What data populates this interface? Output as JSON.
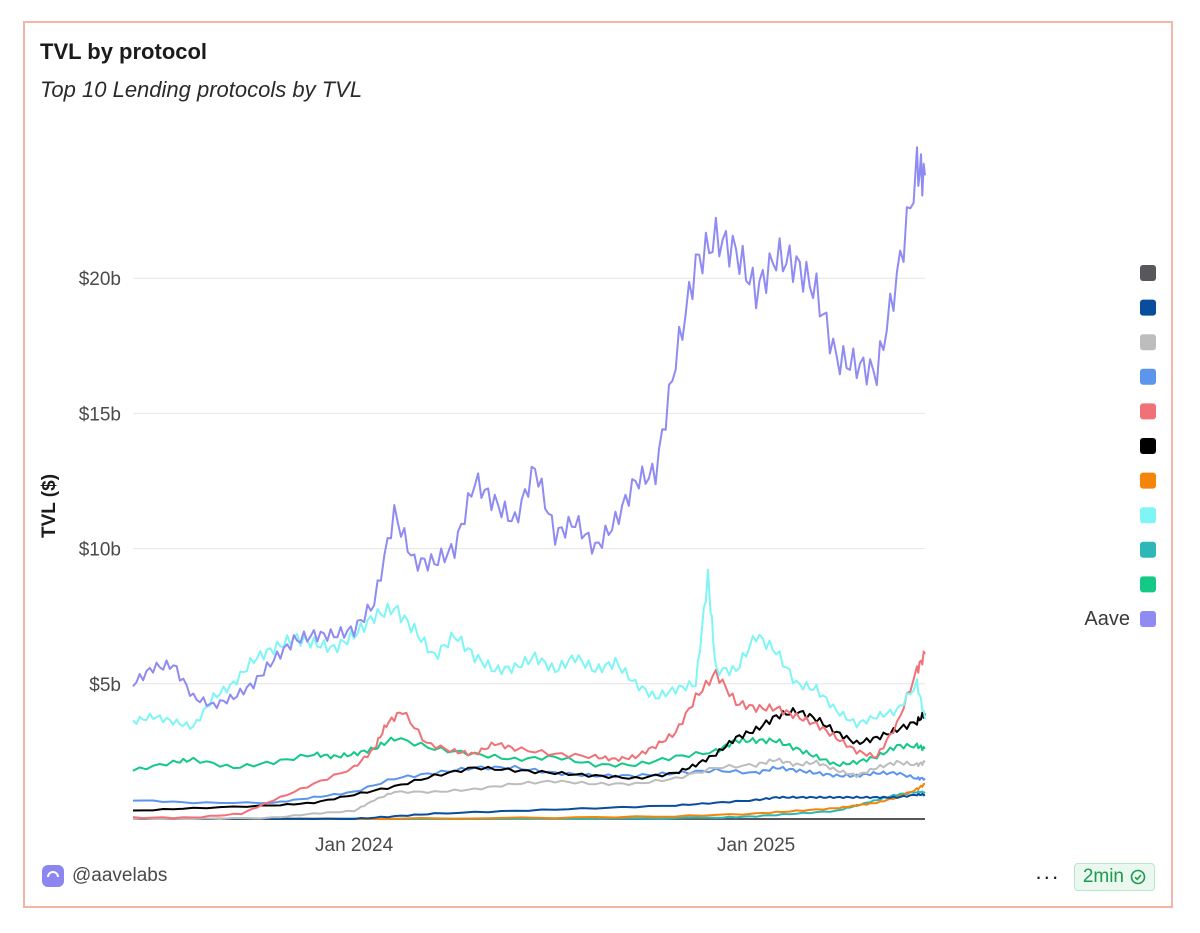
{
  "header": {
    "title": "TVL by protocol",
    "subtitle": "Top 10 Lending protocols by TVL"
  },
  "footer": {
    "author": "@aavelabs",
    "more_label": "···",
    "refresh_label": "2min"
  },
  "colors": {
    "border": "#f2b5a6",
    "grid": "#e6e6e6",
    "badge_green": "#1a9c4c"
  },
  "chart_data": {
    "type": "line",
    "title": "TVL by protocol",
    "subtitle": "Top 10 Lending protocols by TVL",
    "ylabel": "TVL ($)",
    "xlabel": "",
    "ylim": [
      0,
      25
    ],
    "y_unit": "billion USD",
    "yticks": [
      {
        "value": 5,
        "label": "$5b"
      },
      {
        "value": 10,
        "label": "$10b"
      },
      {
        "value": 15,
        "label": "$15b"
      },
      {
        "value": 20,
        "label": "$20b"
      }
    ],
    "xrange": [
      2023.45,
      2025.42
    ],
    "xticks": [
      {
        "value": 2024.0,
        "label": "Jan 2024"
      },
      {
        "value": 2025.0,
        "label": "Jan 2025"
      }
    ],
    "legend": [
      "",
      "",
      "",
      "",
      "",
      "",
      "",
      "",
      "",
      "",
      "Aave"
    ],
    "series": [
      {
        "name": "Aave",
        "color": "#8f8bf2",
        "x": [
          2023.45,
          2023.5,
          2023.55,
          2023.6,
          2023.65,
          2023.7,
          2023.75,
          2023.8,
          2023.85,
          2023.9,
          2023.95,
          2024.0,
          2024.05,
          2024.1,
          2024.15,
          2024.2,
          2024.25,
          2024.3,
          2024.35,
          2024.4,
          2024.45,
          2024.5,
          2024.55,
          2024.6,
          2024.65,
          2024.7,
          2024.75,
          2024.8,
          2024.85,
          2024.9,
          2024.95,
          2025.0,
          2025.05,
          2025.1,
          2025.15,
          2025.2,
          2025.25,
          2025.3,
          2025.35,
          2025.4,
          2025.42
        ],
        "y": [
          5.0,
          5.6,
          5.7,
          4.5,
          4.2,
          4.5,
          5.0,
          5.9,
          6.6,
          6.8,
          6.8,
          7.0,
          8.0,
          11.3,
          9.5,
          9.5,
          10.0,
          12.5,
          11.7,
          11.0,
          13.0,
          10.5,
          11.0,
          10.0,
          11.0,
          12.5,
          12.8,
          17.0,
          20.5,
          21.5,
          21.0,
          19.5,
          20.8,
          20.5,
          19.5,
          17.0,
          16.8,
          16.5,
          20.0,
          24.0,
          23.8
        ]
      },
      {
        "name": "",
        "color": "#7ff5f5",
        "x": [
          2023.45,
          2023.5,
          2023.55,
          2023.6,
          2023.65,
          2023.7,
          2023.75,
          2023.8,
          2023.85,
          2023.9,
          2023.95,
          2024.0,
          2024.05,
          2024.1,
          2024.15,
          2024.2,
          2024.25,
          2024.3,
          2024.35,
          2024.4,
          2024.45,
          2024.5,
          2024.55,
          2024.6,
          2024.65,
          2024.7,
          2024.75,
          2024.8,
          2024.85,
          2024.88,
          2024.9,
          2024.95,
          2025.0,
          2025.05,
          2025.1,
          2025.15,
          2025.2,
          2025.25,
          2025.3,
          2025.35,
          2025.4,
          2025.42
        ],
        "y": [
          3.6,
          3.8,
          3.6,
          3.4,
          4.5,
          5.0,
          5.9,
          6.3,
          6.7,
          6.5,
          6.3,
          6.8,
          7.5,
          7.8,
          7.0,
          6.0,
          6.8,
          6.0,
          5.5,
          5.6,
          6.0,
          5.5,
          6.0,
          5.5,
          5.8,
          5.0,
          4.5,
          4.8,
          5.0,
          9.0,
          5.5,
          5.5,
          6.8,
          6.2,
          5.0,
          4.8,
          4.0,
          3.5,
          3.8,
          4.0,
          5.0,
          3.7
        ]
      },
      {
        "name": "",
        "color": "#f07278",
        "x": [
          2023.45,
          2023.6,
          2023.72,
          2023.8,
          2023.9,
          2024.0,
          2024.05,
          2024.08,
          2024.12,
          2024.18,
          2024.25,
          2024.3,
          2024.35,
          2024.4,
          2024.5,
          2024.6,
          2024.65,
          2024.7,
          2024.75,
          2024.8,
          2024.85,
          2024.9,
          2024.95,
          2025.0,
          2025.05,
          2025.1,
          2025.15,
          2025.2,
          2025.25,
          2025.3,
          2025.35,
          2025.4,
          2025.42
        ],
        "y": [
          0.05,
          0.05,
          0.2,
          0.7,
          1.3,
          1.9,
          2.6,
          3.5,
          4.0,
          2.8,
          2.5,
          2.4,
          2.8,
          2.6,
          2.4,
          2.3,
          2.2,
          2.3,
          2.7,
          3.2,
          4.5,
          5.4,
          4.3,
          4.1,
          4.1,
          3.8,
          3.5,
          3.0,
          2.5,
          2.3,
          3.5,
          5.5,
          6.1
        ]
      },
      {
        "name": "",
        "color": "#000000",
        "x": [
          2023.45,
          2023.6,
          2023.8,
          2023.9,
          2024.0,
          2024.1,
          2024.2,
          2024.3,
          2024.4,
          2024.5,
          2024.6,
          2024.7,
          2024.8,
          2024.85,
          2024.9,
          2024.95,
          2025.0,
          2025.05,
          2025.1,
          2025.15,
          2025.2,
          2025.25,
          2025.3,
          2025.35,
          2025.4,
          2025.42
        ],
        "y": [
          0.3,
          0.4,
          0.5,
          0.6,
          0.9,
          1.2,
          1.6,
          1.9,
          1.8,
          1.7,
          1.6,
          1.5,
          1.7,
          2.0,
          2.4,
          3.0,
          3.3,
          3.8,
          4.0,
          3.7,
          3.2,
          2.8,
          3.0,
          3.3,
          3.6,
          3.9
        ]
      },
      {
        "name": "",
        "color": "#14c986",
        "x": [
          2023.45,
          2023.55,
          2023.6,
          2023.7,
          2023.8,
          2023.9,
          2023.95,
          2024.0,
          2024.05,
          2024.1,
          2024.2,
          2024.3,
          2024.4,
          2024.5,
          2024.6,
          2024.7,
          2024.8,
          2024.9,
          2024.95,
          2025.0,
          2025.05,
          2025.1,
          2025.15,
          2025.2,
          2025.25,
          2025.3,
          2025.35,
          2025.4,
          2025.42
        ],
        "y": [
          1.8,
          2.1,
          2.2,
          1.9,
          2.1,
          2.4,
          2.3,
          2.4,
          2.6,
          3.0,
          2.6,
          2.4,
          2.2,
          2.3,
          2.0,
          2.0,
          2.3,
          2.5,
          2.9,
          2.9,
          2.9,
          2.6,
          2.3,
          2.0,
          2.1,
          2.3,
          2.7,
          2.7,
          2.6
        ]
      },
      {
        "name": "",
        "color": "#bdbdbd",
        "x": [
          2023.45,
          2023.6,
          2023.8,
          2023.9,
          2024.0,
          2024.05,
          2024.1,
          2024.2,
          2024.3,
          2024.4,
          2024.5,
          2024.6,
          2024.7,
          2024.8,
          2024.9,
          2025.0,
          2025.05,
          2025.1,
          2025.15,
          2025.2,
          2025.25,
          2025.3,
          2025.35,
          2025.4,
          2025.42
        ],
        "y": [
          0.0,
          0.0,
          0.05,
          0.2,
          0.3,
          0.7,
          1.0,
          1.0,
          1.1,
          1.3,
          1.4,
          1.3,
          1.3,
          1.5,
          1.9,
          2.0,
          2.2,
          2.0,
          2.1,
          1.8,
          1.6,
          1.9,
          2.1,
          2.0,
          2.1
        ]
      },
      {
        "name": "",
        "color": "#5b96ec",
        "x": [
          2023.45,
          2023.6,
          2023.8,
          2023.9,
          2024.0,
          2024.1,
          2024.2,
          2024.3,
          2024.4,
          2024.5,
          2024.6,
          2024.7,
          2024.8,
          2024.9,
          2025.0,
          2025.05,
          2025.1,
          2025.15,
          2025.2,
          2025.25,
          2025.3,
          2025.35,
          2025.4,
          2025.42
        ],
        "y": [
          0.7,
          0.6,
          0.6,
          0.8,
          1.0,
          1.5,
          1.7,
          1.9,
          1.9,
          1.7,
          1.6,
          1.6,
          1.7,
          1.8,
          1.7,
          1.9,
          1.8,
          1.7,
          1.6,
          1.6,
          1.7,
          1.7,
          1.5,
          1.5
        ]
      },
      {
        "name": "",
        "color": "#0a4d9c",
        "x": [
          2023.45,
          2023.8,
          2024.0,
          2024.1,
          2024.2,
          2024.4,
          2024.6,
          2024.8,
          2024.9,
          2025.0,
          2025.05,
          2025.1,
          2025.15,
          2025.2,
          2025.25,
          2025.3,
          2025.35,
          2025.4,
          2025.42
        ],
        "y": [
          0.0,
          0.0,
          0.0,
          0.1,
          0.2,
          0.3,
          0.4,
          0.5,
          0.6,
          0.7,
          0.8,
          0.8,
          0.8,
          0.8,
          0.8,
          0.8,
          0.8,
          0.9,
          0.9
        ]
      },
      {
        "name": "",
        "color": "#f5850a",
        "x": [
          2023.45,
          2024.0,
          2024.5,
          2024.8,
          2025.0,
          2025.1,
          2025.2,
          2025.25,
          2025.3,
          2025.35,
          2025.4,
          2025.42
        ],
        "y": [
          0.0,
          0.0,
          0.05,
          0.1,
          0.2,
          0.3,
          0.4,
          0.5,
          0.6,
          0.8,
          1.1,
          1.3
        ]
      },
      {
        "name": "",
        "color": "#2db7b7",
        "x": [
          2023.45,
          2024.5,
          2024.9,
          2025.0,
          2025.1,
          2025.2,
          2025.25,
          2025.3,
          2025.35,
          2025.4,
          2025.42
        ],
        "y": [
          0.0,
          0.0,
          0.05,
          0.1,
          0.2,
          0.3,
          0.5,
          0.7,
          0.9,
          1.0,
          1.0
        ]
      },
      {
        "name": "",
        "color": "#58585c",
        "x": [
          2023.45,
          2025.42
        ],
        "y": [
          0.0,
          0.0
        ]
      }
    ]
  }
}
